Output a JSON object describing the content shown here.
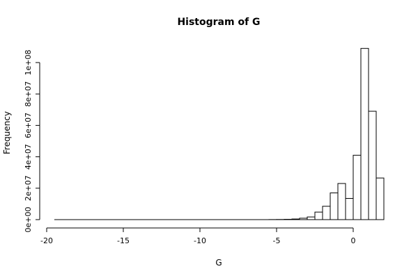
{
  "chart_data": {
    "type": "bar",
    "title": "Histogram of G",
    "xlabel": "G",
    "ylabel": "Frequency",
    "xlim": [
      -20,
      2
    ],
    "ylim": [
      0,
      100000000
    ],
    "x_ticks": [
      {
        "value": -20,
        "label": "-20"
      },
      {
        "value": -15,
        "label": "-15"
      },
      {
        "value": -10,
        "label": "-10"
      },
      {
        "value": -5,
        "label": "-5"
      },
      {
        "value": 0,
        "label": "0"
      }
    ],
    "y_ticks": [
      {
        "value": 0,
        "label": "0e+00"
      },
      {
        "value": 20000000,
        "label": "2e+07"
      },
      {
        "value": 40000000,
        "label": "4e+07"
      },
      {
        "value": 60000000,
        "label": "6e+07"
      },
      {
        "value": 80000000,
        "label": "8e+07"
      },
      {
        "value": 100000000,
        "label": "1e+08"
      }
    ],
    "bin_width": 0.5,
    "bins": [
      {
        "start": -19.5,
        "value": 0
      },
      {
        "start": -19.0,
        "value": 0
      },
      {
        "start": -18.5,
        "value": 0
      },
      {
        "start": -18.0,
        "value": 0
      },
      {
        "start": -17.5,
        "value": 0
      },
      {
        "start": -17.0,
        "value": 0
      },
      {
        "start": -16.5,
        "value": 0
      },
      {
        "start": -16.0,
        "value": 0
      },
      {
        "start": -15.5,
        "value": 0
      },
      {
        "start": -15.0,
        "value": 0
      },
      {
        "start": -14.5,
        "value": 0
      },
      {
        "start": -14.0,
        "value": 0
      },
      {
        "start": -13.5,
        "value": 0
      },
      {
        "start": -13.0,
        "value": 0
      },
      {
        "start": -12.5,
        "value": 0
      },
      {
        "start": -12.0,
        "value": 0
      },
      {
        "start": -11.5,
        "value": 0
      },
      {
        "start": -11.0,
        "value": 0
      },
      {
        "start": -10.5,
        "value": 0
      },
      {
        "start": -10.0,
        "value": 0
      },
      {
        "start": -9.5,
        "value": 0
      },
      {
        "start": -9.0,
        "value": 0
      },
      {
        "start": -8.5,
        "value": 0
      },
      {
        "start": -8.0,
        "value": 0
      },
      {
        "start": -7.5,
        "value": 0
      },
      {
        "start": -7.0,
        "value": 0
      },
      {
        "start": -6.5,
        "value": 0
      },
      {
        "start": -6.0,
        "value": 0
      },
      {
        "start": -5.5,
        "value": 50000
      },
      {
        "start": -5.0,
        "value": 100000
      },
      {
        "start": -4.5,
        "value": 200000
      },
      {
        "start": -4.0,
        "value": 400000
      },
      {
        "start": -3.5,
        "value": 900000
      },
      {
        "start": -3.0,
        "value": 1700000
      },
      {
        "start": -2.5,
        "value": 4800000
      },
      {
        "start": -2.0,
        "value": 8500000
      },
      {
        "start": -1.5,
        "value": 17000000
      },
      {
        "start": -1.0,
        "value": 23000000
      },
      {
        "start": -0.5,
        "value": 13500000
      },
      {
        "start": 0.0,
        "value": 41000000
      },
      {
        "start": 0.5,
        "value": 109000000
      },
      {
        "start": 1.0,
        "value": 69000000
      },
      {
        "start": 1.5,
        "value": 26500000
      }
    ]
  }
}
